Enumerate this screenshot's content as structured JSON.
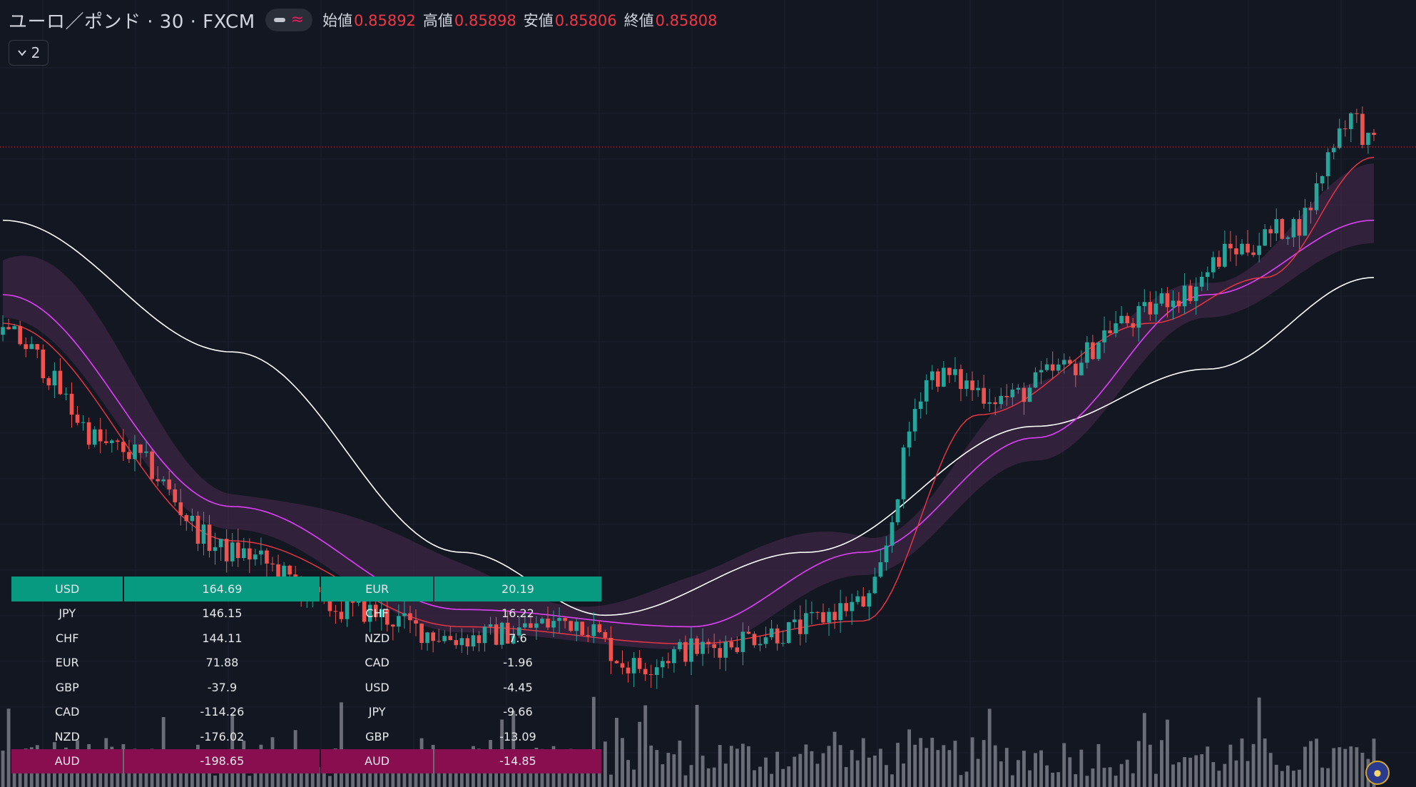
{
  "header": {
    "symbol": "ユーロ／ポンド · 30 · FXCM",
    "ohlc": [
      {
        "label": "始値",
        "value": "0.85892"
      },
      {
        "label": "高値",
        "value": "0.85898"
      },
      {
        "label": "安値",
        "value": "0.85806"
      },
      {
        "label": "終値",
        "value": "0.85808"
      }
    ],
    "indicator_count": "2"
  },
  "colors": {
    "background": "#131722",
    "up": "#26a69a",
    "down": "#ef5350",
    "sma_short": "#f23645",
    "sma_mid": "#e040fb",
    "sma_long": "#ffffff",
    "cloud_bear": "#4a2a4f",
    "cloud_bull": "#1f2a44",
    "volume": "#b2b5be",
    "price_line": "#f23645"
  },
  "chart_data": {
    "type": "candlestick",
    "symbol": "EUR/GBP",
    "timeframe": "30",
    "source": "FXCM",
    "ylim": [
      0.8469,
      0.8599
    ],
    "last_price": 0.85808,
    "candles": 240,
    "close_path": [
      [
        0,
        0.8548
      ],
      [
        20,
        0.8528
      ],
      [
        40,
        0.851
      ],
      [
        60,
        0.85
      ],
      [
        80,
        0.8495
      ],
      [
        100,
        0.8498
      ],
      [
        110,
        0.849
      ],
      [
        120,
        0.8493
      ],
      [
        135,
        0.8496
      ],
      [
        150,
        0.8501
      ],
      [
        162,
        0.8541
      ],
      [
        175,
        0.8537
      ],
      [
        185,
        0.8542
      ],
      [
        195,
        0.855
      ],
      [
        205,
        0.8555
      ],
      [
        215,
        0.8563
      ],
      [
        225,
        0.8567
      ],
      [
        235,
        0.8586
      ],
      [
        239,
        0.85808
      ]
    ],
    "sma_short_path": [
      [
        0,
        0.855
      ],
      [
        40,
        0.8512
      ],
      [
        80,
        0.8497
      ],
      [
        120,
        0.8494
      ],
      [
        150,
        0.8498
      ],
      [
        170,
        0.8534
      ],
      [
        200,
        0.855
      ],
      [
        220,
        0.8558
      ],
      [
        239,
        0.8579
      ]
    ],
    "sma_mid_path": [
      [
        0,
        0.8555
      ],
      [
        40,
        0.8518
      ],
      [
        80,
        0.85
      ],
      [
        120,
        0.8497
      ],
      [
        150,
        0.851
      ],
      [
        180,
        0.853
      ],
      [
        210,
        0.8555
      ],
      [
        239,
        0.8568
      ]
    ],
    "sma_long_path": [
      [
        0,
        0.8568
      ],
      [
        40,
        0.8545
      ],
      [
        80,
        0.851
      ],
      [
        105,
        0.8499
      ],
      [
        140,
        0.851
      ],
      [
        180,
        0.8532
      ],
      [
        210,
        0.8542
      ],
      [
        239,
        0.8558
      ]
    ],
    "currency_strength": {
      "left": [
        {
          "currency": "USD",
          "value": "164.69"
        },
        {
          "currency": "JPY",
          "value": "146.15"
        },
        {
          "currency": "CHF",
          "value": "144.11"
        },
        {
          "currency": "EUR",
          "value": "71.88"
        },
        {
          "currency": "GBP",
          "value": "-37.9"
        },
        {
          "currency": "CAD",
          "value": "-114.26"
        },
        {
          "currency": "NZD",
          "value": "-176.02"
        },
        {
          "currency": "AUD",
          "value": "-198.65"
        }
      ],
      "right": [
        {
          "currency": "EUR",
          "value": "20.19"
        },
        {
          "currency": "CHF",
          "value": "16.22"
        },
        {
          "currency": "NZD",
          "value": "7.6"
        },
        {
          "currency": "CAD",
          "value": "-1.96"
        },
        {
          "currency": "USD",
          "value": "-4.45"
        },
        {
          "currency": "JPY",
          "value": "-9.66"
        },
        {
          "currency": "GBP",
          "value": "-13.09"
        },
        {
          "currency": "AUD",
          "value": "-14.85"
        }
      ]
    }
  }
}
